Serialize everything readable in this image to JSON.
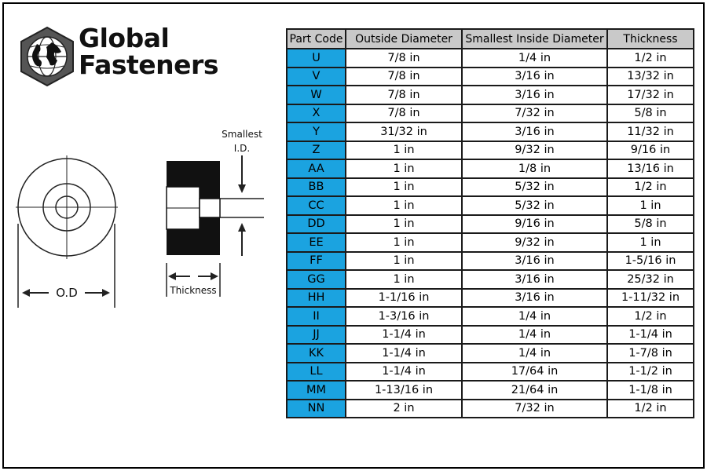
{
  "brand": {
    "line1": "Global",
    "line2": "Fasteners",
    "logo_icon": "globe-hexagon-icon"
  },
  "diagram": {
    "smallest_line1": "Smallest",
    "smallest_line2": "I.D.",
    "thickness": "Thickness",
    "od": "O.D"
  },
  "table": {
    "headers": [
      "Part Code",
      "Outside Diameter",
      "Smallest Inside Diameter",
      "Thickness"
    ],
    "rows": [
      [
        "U",
        "7/8 in",
        "1/4 in",
        "1/2 in"
      ],
      [
        "V",
        "7/8 in",
        "3/16 in",
        "13/32 in"
      ],
      [
        "W",
        "7/8 in",
        "3/16 in",
        "17/32 in"
      ],
      [
        "X",
        "7/8 in",
        "7/32 in",
        "5/8 in"
      ],
      [
        "Y",
        "31/32 in",
        "3/16 in",
        "11/32 in"
      ],
      [
        "Z",
        "1 in",
        "9/32 in",
        "9/16 in"
      ],
      [
        "AA",
        "1 in",
        "1/8 in",
        "13/16 in"
      ],
      [
        "BB",
        "1 in",
        "5/32 in",
        "1/2 in"
      ],
      [
        "CC",
        "1 in",
        "5/32 in",
        "1 in"
      ],
      [
        "DD",
        "1 in",
        "9/16 in",
        "5/8 in"
      ],
      [
        "EE",
        "1 in",
        "9/32 in",
        "1 in"
      ],
      [
        "FF",
        "1 in",
        "3/16 in",
        "1-5/16 in"
      ],
      [
        "GG",
        "1 in",
        "3/16 in",
        "25/32 in"
      ],
      [
        "HH",
        "1-1/16 in",
        "3/16 in",
        "1-11/32 in"
      ],
      [
        "II",
        "1-3/16 in",
        "1/4 in",
        "1/2 in"
      ],
      [
        "JJ",
        "1-1/4 in",
        "1/4 in",
        "1-1/4 in"
      ],
      [
        "KK",
        "1-1/4 in",
        "1/4 in",
        "1-7/8 in"
      ],
      [
        "LL",
        "1-1/4 in",
        "17/64 in",
        "1-1/2 in"
      ],
      [
        "MM",
        "1-13/16 in",
        "21/64 in",
        "1-1/8 in"
      ],
      [
        "NN",
        "2 in",
        "7/32 in",
        "1/2 in"
      ]
    ]
  },
  "colors": {
    "code_cell": "#1ba3e0",
    "header_cell": "#c9c9c9",
    "border": "#1a1a1a"
  }
}
